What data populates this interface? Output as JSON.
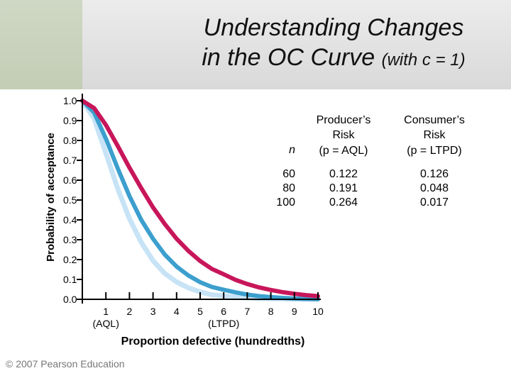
{
  "title_line1": "Understanding Changes",
  "title_line2_main": "in the OC Curve",
  "title_line2_sub": "(with c = 1)",
  "footer": "© 2007 Pearson Education",
  "colors": {
    "series_60": "#c8165a",
    "series_80": "#3c9fce",
    "series_100": "#c7e3f6",
    "header_green": "#c9d3bd",
    "header_gray": "#e2e2e2"
  },
  "chart_data": {
    "type": "line",
    "title": "",
    "xlabel": "Proportion defective (hundredths)",
    "ylabel": "Probability of acceptance",
    "xlim": [
      0,
      10
    ],
    "ylim": [
      0,
      1
    ],
    "x_ticks": [
      "1",
      "2",
      "3",
      "4",
      "5",
      "6",
      "7",
      "8",
      "9",
      "10"
    ],
    "x_tick_sublabels": [
      {
        "x": 1,
        "text": "(AQL)"
      },
      {
        "x": 6,
        "text": "(LTPD)"
      }
    ],
    "y_ticks": [
      "0.0",
      "0.1",
      "0.2",
      "0.3",
      "0.4",
      "0.5",
      "0.6",
      "0.7",
      "0.8",
      "0.9",
      "1.0"
    ],
    "series": [
      {
        "n": 100,
        "x": [
          0,
          0.5,
          1,
          1.5,
          2,
          2.5,
          3,
          3.5,
          4,
          4.5,
          5,
          5.5,
          6,
          6.5,
          7,
          7.5,
          8,
          8.5,
          9,
          9.5,
          10
        ],
        "y": [
          1.0,
          0.91,
          0.736,
          0.558,
          0.406,
          0.287,
          0.195,
          0.13,
          0.087,
          0.058,
          0.037,
          0.023,
          0.017,
          0.011,
          0.007,
          0.004,
          0.003,
          0.002,
          0.001,
          0.0,
          0.0
        ]
      },
      {
        "n": 80,
        "x": [
          0,
          0.5,
          1,
          1.5,
          2,
          2.5,
          3,
          3.5,
          4,
          4.5,
          5,
          5.5,
          6,
          6.5,
          7,
          7.5,
          8,
          8.5,
          9,
          9.5,
          10
        ],
        "y": [
          1.0,
          0.94,
          0.809,
          0.66,
          0.52,
          0.4,
          0.305,
          0.225,
          0.165,
          0.12,
          0.086,
          0.062,
          0.048,
          0.035,
          0.024,
          0.016,
          0.011,
          0.007,
          0.004,
          0.002,
          0.001
        ]
      },
      {
        "n": 60,
        "x": [
          0,
          0.5,
          1,
          1.5,
          2,
          2.5,
          3,
          3.5,
          4,
          4.5,
          5,
          5.5,
          6,
          6.5,
          7,
          7.5,
          8,
          8.5,
          9,
          9.5,
          10
        ],
        "y": [
          1.0,
          0.963,
          0.878,
          0.773,
          0.663,
          0.56,
          0.463,
          0.379,
          0.305,
          0.244,
          0.193,
          0.153,
          0.126,
          0.098,
          0.077,
          0.06,
          0.047,
          0.036,
          0.028,
          0.021,
          0.016
        ]
      }
    ],
    "table": {
      "headers": {
        "n": "n",
        "producer": [
          "Producer’s",
          "Risk",
          "(p = AQL)"
        ],
        "consumer": [
          "Consumer’s",
          "Risk",
          "(p = LTPD)"
        ]
      },
      "rows": [
        {
          "n": "60",
          "producer": "0.122",
          "consumer": "0.126"
        },
        {
          "n": "80",
          "producer": "0.191",
          "consumer": "0.048"
        },
        {
          "n": "100",
          "producer": "0.264",
          "consumer": "0.017"
        }
      ]
    }
  }
}
